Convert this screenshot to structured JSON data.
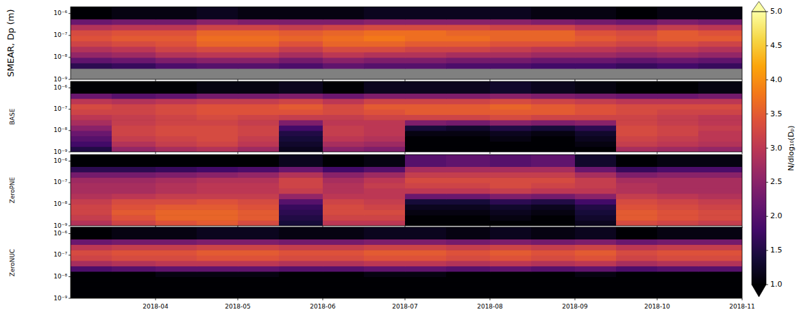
{
  "chart_data": {
    "type": "heatmap",
    "log": "y",
    "x": [
      "2018-03-01",
      "2018-03-16",
      "2018-04-01",
      "2018-04-16",
      "2018-05-01",
      "2018-05-16",
      "2018-06-01",
      "2018-06-16",
      "2018-07-01",
      "2018-07-16",
      "2018-08-01",
      "2018-08-16",
      "2018-09-01",
      "2018-09-16",
      "2018-10-01",
      "2018-10-16"
    ],
    "xlim": [
      "2018-03-01",
      "2018-11-01"
    ],
    "xticks": [
      {
        "value": "2018-04-01",
        "label": "2018-04"
      },
      {
        "value": "2018-05-01",
        "label": "2018-05"
      },
      {
        "value": "2018-06-01",
        "label": "2018-06"
      },
      {
        "value": "2018-07-01",
        "label": "2018-07"
      },
      {
        "value": "2018-08-01",
        "label": "2018-08"
      },
      {
        "value": "2018-09-01",
        "label": "2018-09"
      },
      {
        "value": "2018-10-01",
        "label": "2018-10"
      },
      {
        "value": "2018-11-01",
        "label": "2018-11"
      }
    ],
    "y": [
      1e-09,
      1.778e-09,
      3.162e-09,
      5.623e-09,
      1e-08,
      1.778e-08,
      3.162e-08,
      5.623e-08,
      1e-07,
      1.778e-07,
      3.162e-07,
      5.623e-07
    ],
    "ylim": [
      1e-09,
      2e-06
    ],
    "yticks": [
      {
        "value": 1e-09,
        "label": "10⁻⁹"
      },
      {
        "value": 1e-08,
        "label": "10⁻⁸"
      },
      {
        "value": 1e-07,
        "label": "10⁻⁷"
      },
      {
        "value": 1e-06,
        "label": "10⁻⁶"
      }
    ],
    "colorbar": {
      "label": "N/dlog₁₀(Dₚ)",
      "range": [
        1,
        5
      ],
      "ticks": [
        {
          "value": 1,
          "label": "1.0"
        },
        1.5,
        {
          "value": 2,
          "label": "2.0"
        },
        2.5,
        {
          "value": 3,
          "label": "3.0"
        },
        3.5,
        {
          "value": 4,
          "label": "4.0"
        },
        4.5,
        {
          "value": 5,
          "label": "5.0"
        }
      ]
    },
    "panels": [
      {
        "ylabel": "SMEAR, Dp (m)",
        "tick_labels": "y",
        "values": [
          [
            null,
            null,
            null,
            null,
            null,
            null,
            null,
            null,
            null,
            null,
            null,
            null,
            null,
            null,
            null,
            null
          ],
          [
            null,
            null,
            null,
            null,
            null,
            null,
            null,
            null,
            null,
            null,
            null,
            null,
            null,
            null,
            null,
            null
          ],
          [
            1.6,
            1.7,
            1.9,
            2.0,
            2.0,
            1.9,
            2.1,
            2.0,
            2.0,
            1.9,
            1.9,
            1.8,
            1.8,
            1.7,
            1.8,
            1.7
          ],
          [
            2.1,
            2.2,
            2.4,
            2.5,
            2.5,
            2.3,
            2.5,
            2.4,
            2.4,
            2.3,
            2.3,
            2.2,
            2.2,
            2.1,
            2.2,
            2.1
          ],
          [
            2.6,
            2.7,
            2.9,
            3.0,
            3.0,
            2.8,
            3.0,
            2.9,
            2.9,
            2.8,
            2.8,
            2.7,
            2.7,
            2.6,
            2.7,
            2.6
          ],
          [
            2.9,
            3.0,
            3.2,
            3.3,
            3.3,
            3.1,
            3.3,
            3.3,
            3.2,
            3.2,
            3.1,
            3.0,
            3.0,
            2.9,
            3.0,
            2.9
          ],
          [
            3.2,
            3.3,
            3.4,
            3.6,
            3.6,
            3.4,
            3.6,
            3.6,
            3.5,
            3.5,
            3.4,
            3.4,
            3.3,
            3.2,
            3.3,
            3.2
          ],
          [
            3.4,
            3.5,
            3.5,
            3.7,
            3.7,
            3.6,
            3.7,
            3.8,
            3.7,
            3.7,
            3.6,
            3.6,
            3.5,
            3.4,
            3.5,
            3.5
          ],
          [
            3.3,
            3.4,
            3.4,
            3.6,
            3.6,
            3.5,
            3.6,
            3.7,
            3.7,
            3.6,
            3.6,
            3.6,
            3.4,
            3.3,
            3.5,
            3.4
          ],
          [
            2.9,
            3.0,
            3.0,
            3.2,
            3.2,
            3.1,
            3.2,
            3.3,
            3.3,
            3.3,
            3.2,
            3.2,
            3.0,
            2.9,
            3.1,
            3.0
          ],
          [
            2.2,
            2.3,
            2.3,
            2.5,
            2.4,
            2.4,
            2.4,
            2.5,
            2.5,
            2.5,
            2.5,
            2.4,
            2.3,
            2.2,
            2.4,
            2.3
          ],
          [
            1.0,
            1.1,
            1.1,
            1.2,
            1.1,
            1.1,
            1.1,
            1.2,
            1.2,
            1.2,
            1.2,
            1.1,
            1.1,
            1.0,
            1.1,
            1.1
          ]
        ]
      },
      {
        "ylabel": "BASE",
        "tick_labels": "y",
        "values": [
          [
            1.5,
            2.6,
            2.8,
            2.9,
            2.7,
            1.2,
            2.5,
            2.4,
            0.8,
            0.8,
            0.9,
            0.8,
            1.0,
            2.8,
            2.7,
            2.6
          ],
          [
            1.8,
            2.9,
            3.1,
            3.2,
            3.0,
            1.3,
            2.8,
            2.7,
            0.9,
            0.9,
            1.0,
            0.9,
            1.1,
            3.1,
            3.0,
            2.9
          ],
          [
            2.0,
            3.1,
            3.2,
            3.3,
            3.1,
            1.4,
            3.0,
            2.9,
            1.0,
            1.0,
            1.1,
            1.0,
            1.2,
            3.2,
            3.1,
            3.0
          ],
          [
            2.2,
            3.2,
            3.3,
            3.3,
            3.2,
            1.5,
            3.1,
            3.0,
            1.1,
            1.1,
            1.2,
            1.1,
            1.3,
            3.3,
            3.2,
            3.0
          ],
          [
            2.5,
            3.2,
            3.3,
            3.3,
            3.2,
            1.8,
            3.1,
            3.0,
            1.4,
            1.3,
            1.5,
            1.4,
            1.6,
            3.3,
            3.2,
            3.1
          ],
          [
            2.8,
            3.1,
            3.2,
            3.2,
            3.1,
            2.4,
            3.0,
            3.0,
            2.4,
            2.3,
            2.5,
            2.4,
            2.5,
            3.2,
            3.1,
            3.0
          ],
          [
            3.0,
            3.1,
            3.2,
            3.3,
            3.2,
            3.1,
            3.1,
            3.2,
            3.2,
            3.2,
            3.3,
            3.2,
            3.2,
            3.2,
            3.1,
            3.0
          ],
          [
            3.2,
            3.2,
            3.3,
            3.4,
            3.4,
            3.4,
            3.3,
            3.4,
            3.5,
            3.5,
            3.5,
            3.5,
            3.4,
            3.3,
            3.2,
            3.2
          ],
          [
            3.3,
            3.2,
            3.3,
            3.4,
            3.4,
            3.5,
            3.3,
            3.5,
            3.5,
            3.5,
            3.6,
            3.5,
            3.4,
            3.3,
            3.3,
            3.3
          ],
          [
            3.0,
            2.9,
            3.0,
            3.1,
            3.1,
            3.2,
            3.0,
            3.2,
            3.2,
            3.2,
            3.3,
            3.2,
            3.1,
            3.0,
            3.0,
            3.0
          ],
          [
            2.2,
            2.0,
            2.1,
            2.3,
            2.3,
            2.4,
            2.2,
            2.4,
            2.4,
            2.4,
            2.5,
            2.4,
            2.3,
            2.2,
            2.2,
            2.3
          ],
          [
            1.0,
            0.9,
            1.0,
            1.1,
            1.1,
            1.2,
            1.0,
            1.2,
            1.2,
            1.2,
            1.3,
            1.2,
            1.1,
            1.0,
            1.0,
            1.1
          ]
        ]
      },
      {
        "ylabel": "ZeroPNE",
        "tick_labels": "y",
        "values": [
          [
            2.9,
            3.2,
            3.4,
            3.5,
            3.3,
            1.4,
            3.0,
            3.0,
            0.9,
            0.9,
            1.0,
            0.9,
            1.2,
            3.3,
            3.2,
            3.1
          ],
          [
            3.1,
            3.4,
            3.6,
            3.6,
            3.5,
            1.5,
            3.2,
            3.2,
            1.0,
            1.0,
            1.1,
            1.0,
            1.3,
            3.5,
            3.4,
            3.3
          ],
          [
            3.2,
            3.5,
            3.6,
            3.6,
            3.5,
            1.6,
            3.3,
            3.3,
            1.1,
            1.1,
            1.2,
            1.1,
            1.4,
            3.5,
            3.4,
            3.3
          ],
          [
            3.2,
            3.4,
            3.5,
            3.5,
            3.4,
            1.7,
            3.3,
            3.2,
            1.2,
            1.2,
            1.3,
            1.2,
            1.5,
            3.4,
            3.3,
            3.2
          ],
          [
            3.1,
            3.3,
            3.3,
            3.4,
            3.3,
            2.0,
            3.2,
            3.1,
            1.4,
            1.4,
            1.6,
            1.5,
            1.8,
            3.3,
            3.2,
            3.1
          ],
          [
            2.9,
            3.0,
            3.1,
            3.1,
            3.1,
            2.6,
            3.0,
            3.0,
            2.2,
            2.2,
            2.4,
            2.3,
            2.5,
            3.1,
            3.0,
            2.9
          ],
          [
            2.8,
            2.8,
            2.9,
            3.0,
            3.0,
            3.1,
            2.9,
            3.0,
            3.0,
            3.0,
            3.1,
            3.0,
            3.0,
            2.9,
            2.8,
            2.8
          ],
          [
            2.8,
            2.8,
            2.9,
            3.0,
            3.0,
            3.2,
            2.9,
            3.1,
            3.2,
            3.2,
            3.3,
            3.2,
            3.1,
            2.9,
            2.8,
            2.8
          ],
          [
            2.7,
            2.7,
            2.8,
            2.9,
            2.9,
            3.2,
            2.8,
            3.0,
            3.3,
            3.3,
            3.3,
            3.3,
            3.1,
            2.8,
            2.8,
            2.8
          ],
          [
            2.3,
            2.3,
            2.4,
            2.5,
            2.6,
            2.9,
            2.5,
            2.7,
            3.1,
            3.1,
            3.1,
            3.1,
            2.8,
            2.4,
            2.5,
            2.5
          ],
          [
            1.6,
            1.6,
            1.7,
            1.8,
            1.9,
            2.2,
            1.8,
            2.0,
            2.8,
            2.8,
            2.8,
            2.8,
            2.2,
            1.7,
            1.9,
            1.9
          ],
          [
            0.8,
            0.8,
            0.9,
            1.0,
            1.0,
            1.2,
            1.0,
            1.1,
            2.0,
            2.1,
            2.0,
            2.1,
            1.3,
            0.9,
            1.1,
            1.1
          ]
        ]
      },
      {
        "ylabel": "ZeroNUC",
        "values": [
          [
            0.5,
            0.5,
            0.5,
            0.5,
            0.5,
            0.5,
            0.5,
            0.5,
            0.5,
            0.5,
            0.5,
            0.5,
            0.5,
            0.5,
            0.5,
            0.5
          ],
          [
            0.5,
            0.5,
            0.5,
            0.5,
            0.5,
            0.5,
            0.5,
            0.5,
            0.5,
            0.5,
            0.5,
            0.5,
            0.5,
            0.5,
            0.5,
            0.5
          ],
          [
            0.5,
            0.5,
            0.6,
            0.6,
            0.6,
            0.5,
            0.5,
            0.6,
            0.6,
            0.5,
            0.5,
            0.5,
            0.6,
            0.5,
            0.5,
            0.5
          ],
          [
            0.6,
            0.6,
            0.6,
            0.6,
            0.6,
            0.6,
            0.6,
            0.6,
            0.6,
            0.6,
            0.6,
            0.6,
            0.6,
            0.6,
            0.6,
            0.6
          ],
          [
            1.0,
            1.0,
            1.1,
            1.1,
            1.1,
            1.0,
            1.0,
            1.1,
            1.1,
            1.0,
            1.0,
            1.0,
            1.1,
            1.0,
            1.0,
            1.0
          ],
          [
            1.9,
            2.0,
            2.1,
            2.1,
            2.1,
            2.0,
            2.0,
            2.1,
            2.1,
            2.0,
            2.1,
            2.0,
            2.1,
            1.9,
            2.0,
            2.0
          ],
          [
            2.8,
            2.9,
            3.0,
            3.0,
            3.0,
            2.9,
            2.9,
            3.0,
            3.0,
            2.9,
            3.0,
            2.9,
            3.0,
            2.8,
            2.9,
            2.9
          ],
          [
            3.2,
            3.3,
            3.3,
            3.4,
            3.4,
            3.3,
            3.3,
            3.4,
            3.4,
            3.3,
            3.4,
            3.3,
            3.4,
            3.2,
            3.3,
            3.3
          ],
          [
            3.3,
            3.4,
            3.4,
            3.5,
            3.5,
            3.4,
            3.4,
            3.5,
            3.5,
            3.4,
            3.5,
            3.4,
            3.5,
            3.3,
            3.4,
            3.4
          ],
          [
            3.0,
            3.1,
            3.1,
            3.2,
            3.2,
            3.1,
            3.1,
            3.2,
            3.2,
            3.1,
            3.2,
            3.1,
            3.2,
            3.0,
            3.1,
            3.1
          ],
          [
            2.2,
            2.3,
            2.3,
            2.4,
            2.4,
            2.3,
            2.3,
            2.4,
            2.4,
            2.3,
            2.4,
            2.3,
            2.4,
            2.2,
            2.3,
            2.3
          ],
          [
            1.0,
            1.1,
            1.1,
            1.2,
            1.2,
            1.1,
            1.1,
            1.2,
            1.2,
            1.1,
            1.2,
            1.1,
            1.2,
            1.0,
            1.1,
            1.1
          ]
        ]
      }
    ]
  }
}
